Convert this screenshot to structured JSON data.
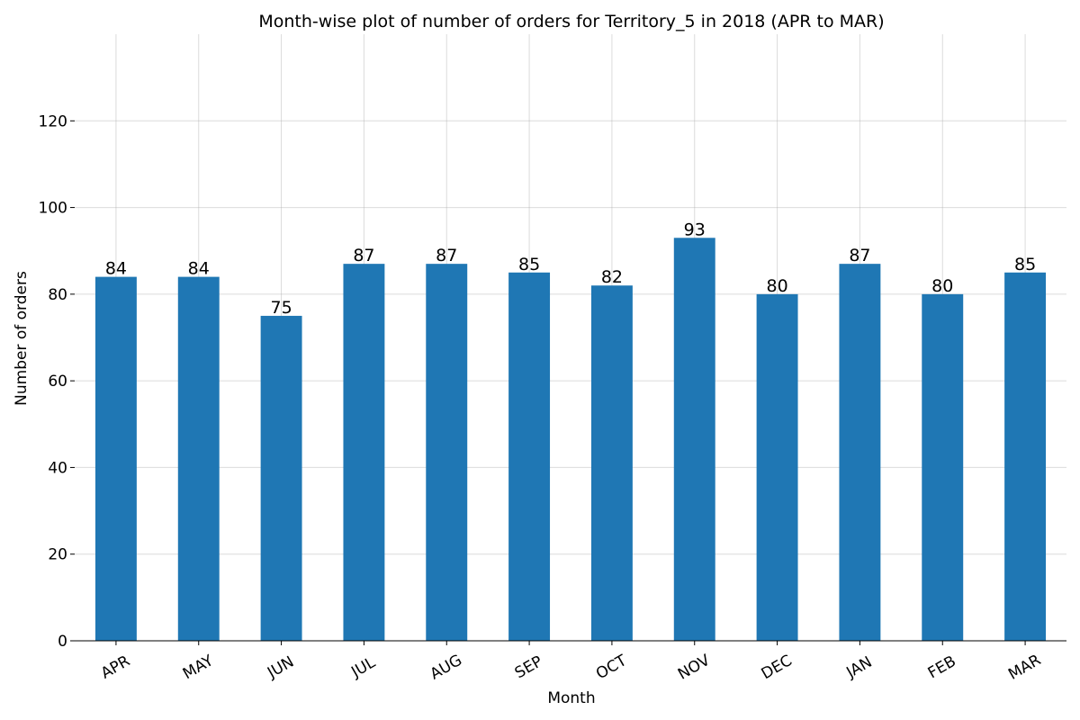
{
  "chart_data": {
    "type": "bar",
    "title": "Month-wise plot of number of orders for Territory_5 in 2018 (APR to MAR)",
    "xlabel": "Month",
    "ylabel": "Number of orders",
    "categories": [
      "APR",
      "MAY",
      "JUN",
      "JUL",
      "AUG",
      "SEP",
      "OCT",
      "NOV",
      "DEC",
      "JAN",
      "FEB",
      "MAR"
    ],
    "values": [
      84,
      84,
      75,
      87,
      87,
      85,
      82,
      93,
      80,
      87,
      80,
      85
    ],
    "ylim": [
      0,
      140
    ],
    "yticks": [
      0,
      20,
      40,
      60,
      80,
      100,
      120
    ],
    "grid": true,
    "bar_color": "#1f77b4",
    "data_labels": true
  }
}
